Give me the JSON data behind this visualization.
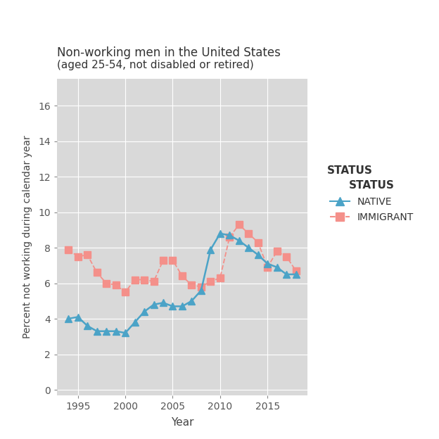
{
  "title_line1": "Non-working men in the United States",
  "title_line2": "(aged 25-54, not disabled or retired)",
  "xlabel": "Year",
  "ylabel": "Percent not working during calendar year",
  "native_years": [
    1994,
    1995,
    1996,
    1997,
    1998,
    1999,
    2000,
    2001,
    2002,
    2003,
    2004,
    2005,
    2006,
    2007,
    2008,
    2009,
    2010,
    2011,
    2012,
    2013,
    2014,
    2015,
    2016,
    2017,
    2018
  ],
  "native_values": [
    4.0,
    4.1,
    3.6,
    3.3,
    3.3,
    3.3,
    3.2,
    3.8,
    4.4,
    4.8,
    4.9,
    4.7,
    4.7,
    5.0,
    5.6,
    7.9,
    8.8,
    8.7,
    8.4,
    8.0,
    7.6,
    7.1,
    6.9,
    6.5,
    6.5
  ],
  "immigrant_years": [
    1994,
    1995,
    1996,
    1997,
    1998,
    1999,
    2000,
    2001,
    2002,
    2003,
    2004,
    2005,
    2006,
    2007,
    2008,
    2009,
    2010,
    2011,
    2012,
    2013,
    2014,
    2015,
    2016,
    2017,
    2018
  ],
  "immigrant_values": [
    7.9,
    7.5,
    7.6,
    6.6,
    6.0,
    5.9,
    5.5,
    6.2,
    6.2,
    6.1,
    7.3,
    7.3,
    6.4,
    5.9,
    5.8,
    6.1,
    6.3,
    8.6,
    9.3,
    8.8,
    8.3,
    6.9,
    7.8,
    7.5,
    6.7
  ],
  "native_color": "#4BA3C7",
  "immigrant_color": "#F4908A",
  "bg_color": "#D9D9D9",
  "title_color": "#333333",
  "axis_label_color": "#444444",
  "tick_color": "#555555",
  "ylim": [
    -0.3,
    17.5
  ],
  "yticks": [
    0,
    2,
    4,
    6,
    8,
    10,
    12,
    14,
    16
  ],
  "xticks": [
    1995,
    2000,
    2005,
    2010,
    2015
  ],
  "legend_title": "STATUS",
  "legend_native": "NATIVE",
  "legend_immigrant": "IMMIGRANT"
}
